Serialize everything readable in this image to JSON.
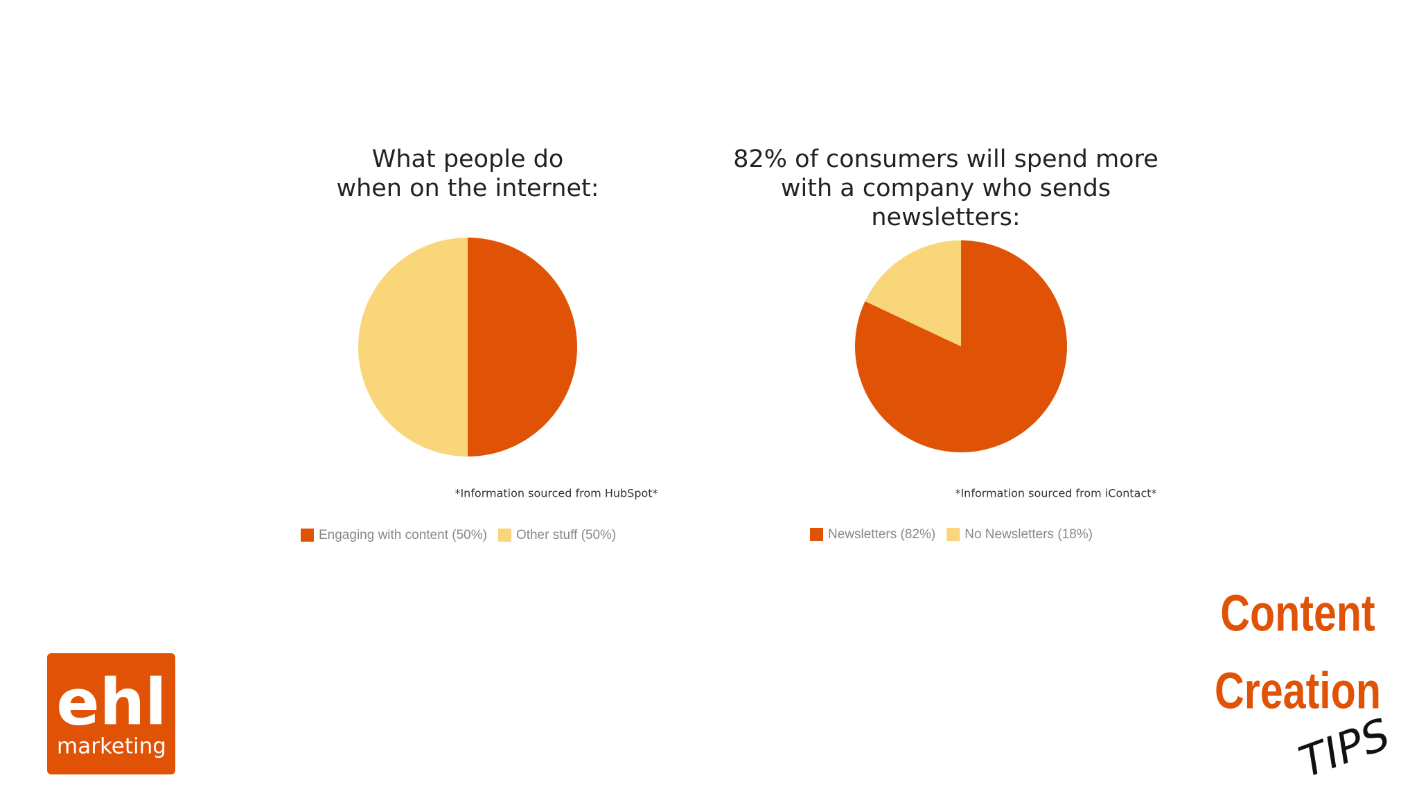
{
  "chart_data": [
    {
      "type": "pie",
      "title": [
        "What people do",
        "when on the internet:"
      ],
      "categories": [
        "Engaging with content (50%)",
        "Other stuff (50%)"
      ],
      "values": [
        50,
        50
      ],
      "colors": [
        "#e05206",
        "#fad67a"
      ],
      "note": "*Information sourced from HubSpot*"
    },
    {
      "type": "pie",
      "title": [
        "82% of consumers will spend more",
        "with a company who sends",
        "newsletters:"
      ],
      "categories": [
        "Newsletters (82%)",
        "No Newsletters (18%)"
      ],
      "values": [
        82,
        18
      ],
      "colors": [
        "#e05206",
        "#fad67a"
      ],
      "note": "*Information sourced from iContact*"
    }
  ],
  "branding": {
    "logo": [
      "ehl",
      "marketing"
    ],
    "heading": [
      "Content",
      "Creation"
    ],
    "tag": "TIPS"
  }
}
